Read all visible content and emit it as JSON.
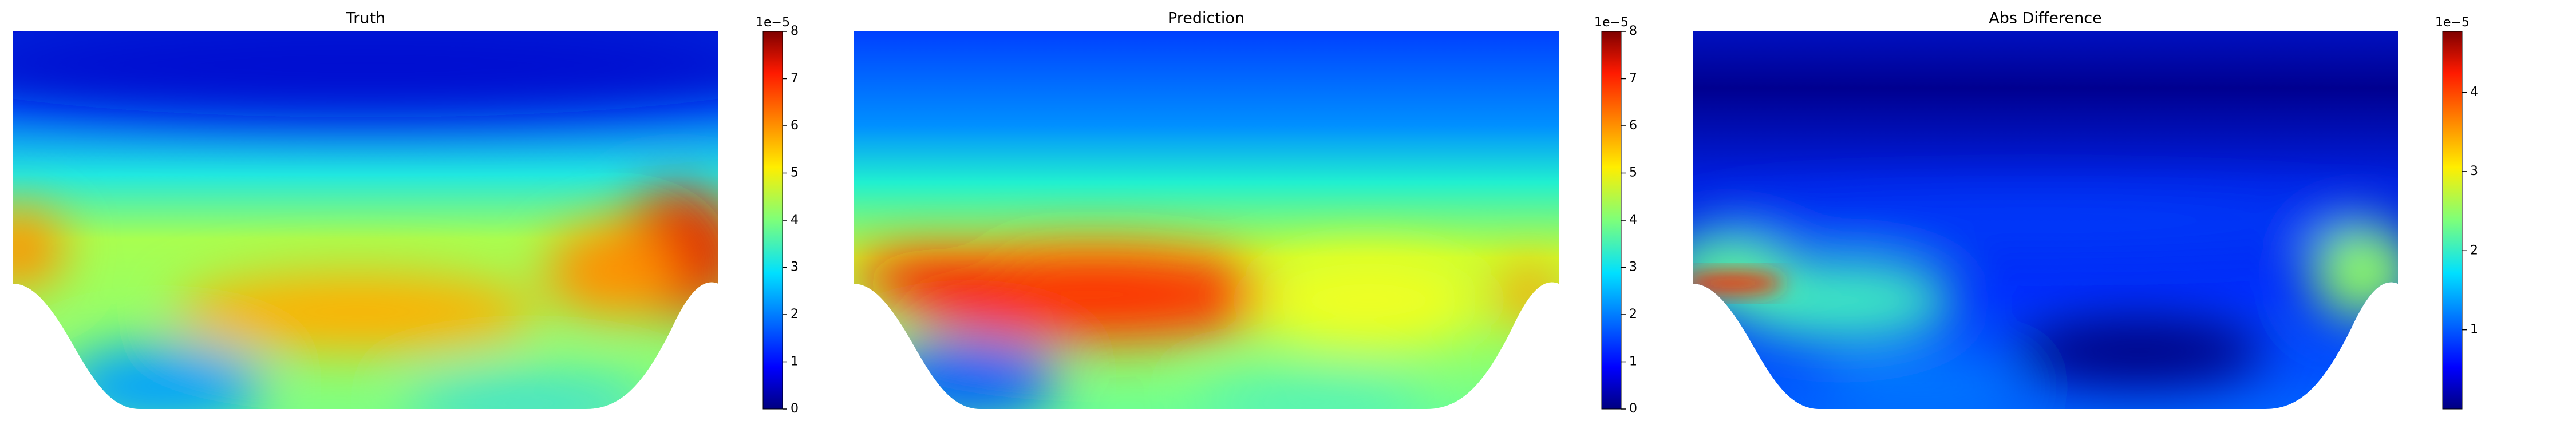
{
  "chart_data": [
    {
      "type": "heatmap",
      "title": "Truth",
      "colormap": "jet",
      "clim": [
        0,
        8
      ],
      "colorbar_ticks": [
        0,
        1,
        2,
        3,
        4,
        5,
        6,
        7,
        8
      ],
      "colorbar_offset_label": "1e−5"
    },
    {
      "type": "heatmap",
      "title": "Prediction",
      "colormap": "jet",
      "clim": [
        0,
        8
      ],
      "colorbar_ticks": [
        0,
        1,
        2,
        3,
        4,
        5,
        6,
        7,
        8
      ],
      "colorbar_offset_label": "1e−5"
    },
    {
      "type": "heatmap",
      "title": "Abs Difference",
      "colormap": "jet",
      "clim": [
        0,
        4.77
      ],
      "colorbar_ticks": [
        1,
        2,
        3,
        4
      ],
      "colorbar_offset_label": "1e−5"
    }
  ]
}
